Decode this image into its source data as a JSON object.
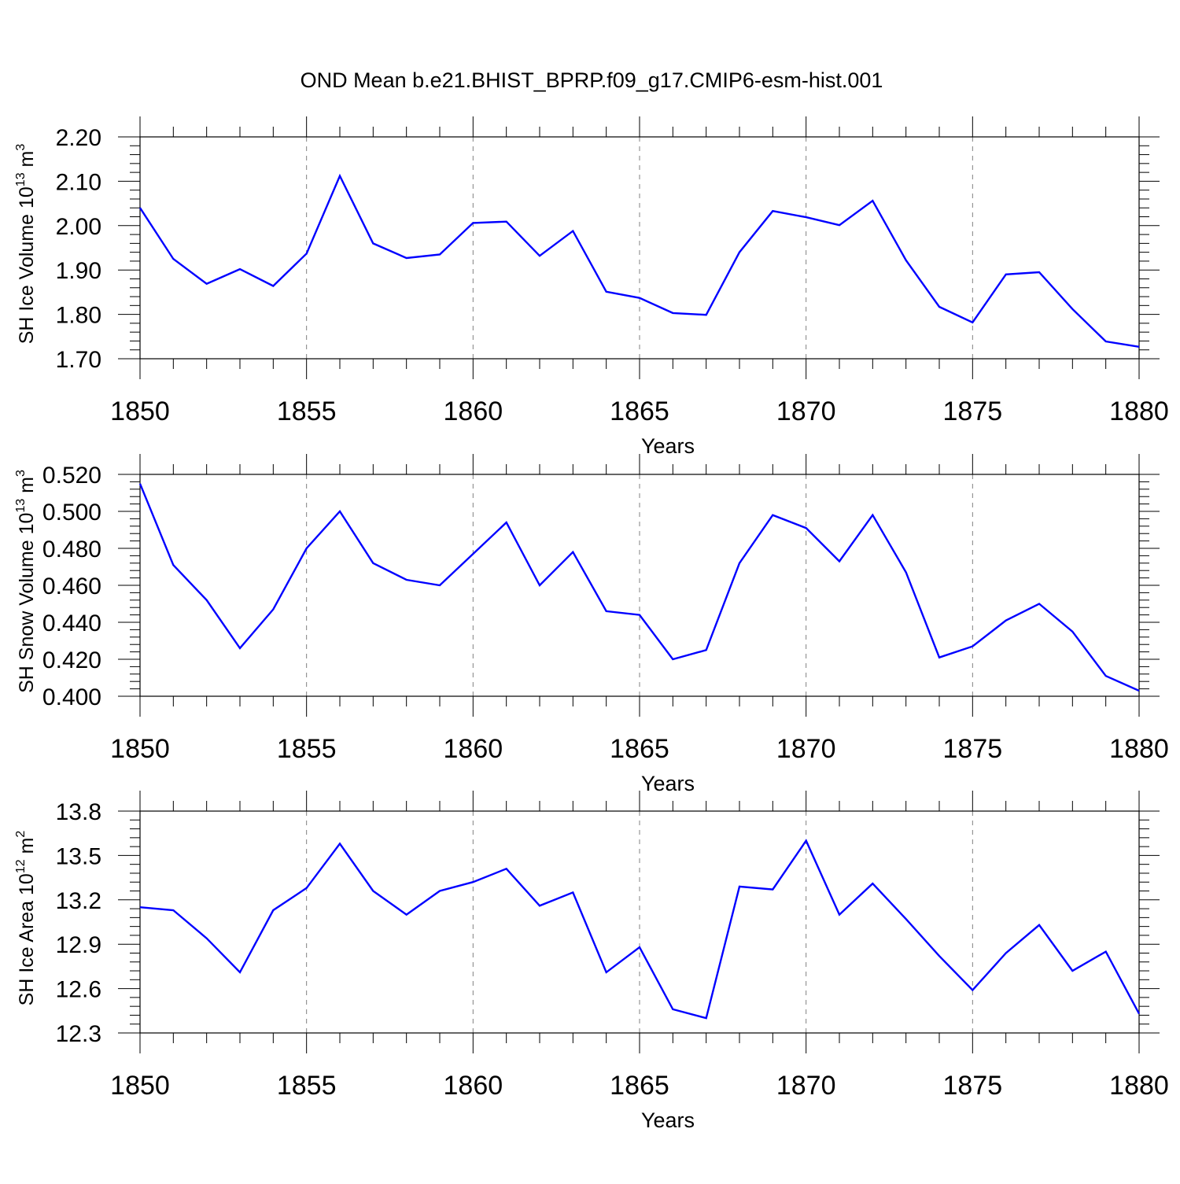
{
  "title": "OND Mean b.e21.BHIST_BPRP.f09_g17.CMIP6-esm-hist.001",
  "colors": {
    "line": "#0000ff",
    "axis": "#000000",
    "grid": "#808080"
  },
  "chart_data": [
    {
      "type": "line",
      "xlabel": "Years",
      "ylabel": {
        "text": "SH Ice Volume 10",
        "exponent": "13",
        "unit": " m",
        "unit_exponent": "3"
      },
      "xlim": [
        1850,
        1880
      ],
      "ylim": [
        1.7,
        2.2
      ],
      "xticks": [
        1850,
        1855,
        1860,
        1865,
        1870,
        1875,
        1880
      ],
      "xtick_labels": [
        "1850",
        "1855",
        "1860",
        "1865",
        "1870",
        "1875",
        "1880"
      ],
      "yticks": [
        1.7,
        1.8,
        1.9,
        2.0,
        2.1,
        2.2
      ],
      "ytick_labels": [
        "1.70",
        "1.80",
        "1.90",
        "2.00",
        "2.10",
        "2.20"
      ],
      "grid": "vertical dashed at major x ticks",
      "series": [
        {
          "x": [
            1850,
            1851,
            1852,
            1853,
            1854,
            1855,
            1856,
            1857,
            1858,
            1859,
            1860,
            1861,
            1862,
            1863,
            1864,
            1865,
            1866,
            1867,
            1868,
            1869,
            1870,
            1871,
            1872,
            1873,
            1874,
            1875,
            1876,
            1877,
            1878,
            1879,
            1880
          ],
          "values": [
            2.04,
            1.925,
            1.869,
            1.902,
            1.864,
            1.937,
            2.112,
            1.96,
            1.927,
            1.935,
            2.006,
            2.009,
            1.932,
            1.988,
            1.851,
            1.837,
            1.803,
            1.799,
            1.94,
            2.033,
            2.019,
            2.001,
            2.056,
            1.922,
            1.817,
            1.782,
            1.89,
            1.895,
            1.812,
            1.739,
            1.727
          ]
        }
      ]
    },
    {
      "type": "line",
      "xlabel": "Years",
      "ylabel": {
        "text": "SH Snow Volume 10",
        "exponent": "13",
        "unit": " m",
        "unit_exponent": "3"
      },
      "xlim": [
        1850,
        1880
      ],
      "ylim": [
        0.4,
        0.52
      ],
      "xticks": [
        1850,
        1855,
        1860,
        1865,
        1870,
        1875,
        1880
      ],
      "xtick_labels": [
        "1850",
        "1855",
        "1860",
        "1865",
        "1870",
        "1875",
        "1880"
      ],
      "yticks": [
        0.4,
        0.42,
        0.44,
        0.46,
        0.48,
        0.5,
        0.52
      ],
      "ytick_labels": [
        "0.400",
        "0.420",
        "0.440",
        "0.460",
        "0.480",
        "0.500",
        "0.520"
      ],
      "grid": "vertical dashed at major x ticks",
      "series": [
        {
          "x": [
            1850,
            1851,
            1852,
            1853,
            1854,
            1855,
            1856,
            1857,
            1858,
            1859,
            1860,
            1861,
            1862,
            1863,
            1864,
            1865,
            1866,
            1867,
            1868,
            1869,
            1870,
            1871,
            1872,
            1873,
            1874,
            1875,
            1876,
            1877,
            1878,
            1879,
            1880
          ],
          "values": [
            0.515,
            0.471,
            0.452,
            0.426,
            0.447,
            0.48,
            0.5,
            0.472,
            0.463,
            0.46,
            0.477,
            0.494,
            0.46,
            0.478,
            0.446,
            0.444,
            0.42,
            0.425,
            0.472,
            0.498,
            0.491,
            0.473,
            0.498,
            0.467,
            0.421,
            0.427,
            0.441,
            0.45,
            0.435,
            0.411,
            0.403
          ]
        }
      ]
    },
    {
      "type": "line",
      "xlabel": "Years",
      "ylabel": {
        "text": "SH Ice Area 10",
        "exponent": "12",
        "unit": " m",
        "unit_exponent": "2"
      },
      "xlim": [
        1850,
        1880
      ],
      "ylim": [
        12.3,
        13.8
      ],
      "xticks": [
        1850,
        1855,
        1860,
        1865,
        1870,
        1875,
        1880
      ],
      "xtick_labels": [
        "1850",
        "1855",
        "1860",
        "1865",
        "1870",
        "1875",
        "1880"
      ],
      "yticks": [
        12.3,
        12.6,
        12.9,
        13.2,
        13.5,
        13.8
      ],
      "ytick_labels": [
        "12.3",
        "12.6",
        "12.9",
        "13.2",
        "13.5",
        "13.8"
      ],
      "grid": "vertical dashed at major x ticks",
      "series": [
        {
          "x": [
            1850,
            1851,
            1852,
            1853,
            1854,
            1855,
            1856,
            1857,
            1858,
            1859,
            1860,
            1861,
            1862,
            1863,
            1864,
            1865,
            1866,
            1867,
            1868,
            1869,
            1870,
            1871,
            1872,
            1873,
            1874,
            1875,
            1876,
            1877,
            1878,
            1879,
            1880
          ],
          "values": [
            13.15,
            13.13,
            12.94,
            12.71,
            13.13,
            13.28,
            13.58,
            13.26,
            13.1,
            13.26,
            13.32,
            13.41,
            13.16,
            13.25,
            12.71,
            12.88,
            12.46,
            12.4,
            13.29,
            13.27,
            13.6,
            13.1,
            13.31,
            13.07,
            12.82,
            12.59,
            12.84,
            13.03,
            12.72,
            12.85,
            12.43
          ]
        }
      ]
    }
  ]
}
